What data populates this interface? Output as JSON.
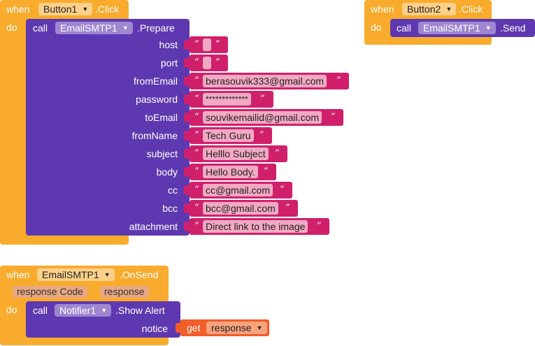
{
  "kw": {
    "when": "when",
    "do": "do",
    "call": "call",
    "get": "get"
  },
  "block1": {
    "component": "Button1",
    "event": ".Click",
    "method_component": "EmailSMTP1",
    "method": ".Prepare",
    "args": [
      {
        "name": "host",
        "value": ""
      },
      {
        "name": "port",
        "value": ""
      },
      {
        "name": "fromEmail",
        "value": "berasouvik333@gmail.com"
      },
      {
        "name": "password",
        "value": "*************"
      },
      {
        "name": "toEmail",
        "value": "souvikemailid@gmail.com"
      },
      {
        "name": "fromName",
        "value": "Tech Guru"
      },
      {
        "name": "subject",
        "value": "Helllo Subject"
      },
      {
        "name": "body",
        "value": "Hello Body."
      },
      {
        "name": "cc",
        "value": "cc@gmail.com"
      },
      {
        "name": "bcc",
        "value": "bcc@gmail.com"
      },
      {
        "name": "attachment",
        "value": "Direct link to the image"
      }
    ]
  },
  "block2": {
    "component": "Button2",
    "event": ".Click",
    "method_component": "EmailSMTP1",
    "method": ".Send"
  },
  "block3": {
    "component": "EmailSMTP1",
    "event": ".OnSend",
    "params": [
      "response Code",
      "response"
    ],
    "method_component": "Notifier1",
    "method": ".Show Alert",
    "arg_name": "notice",
    "get_var": "response"
  },
  "colors": {
    "event_block": "#f9ab2d",
    "procedure_block": "#5e38b0",
    "text_block": "#d0206b",
    "get_block": "#f25d28"
  },
  "quote_open": "“",
  "quote_close": "”",
  "dropdown_arrow": "▼"
}
